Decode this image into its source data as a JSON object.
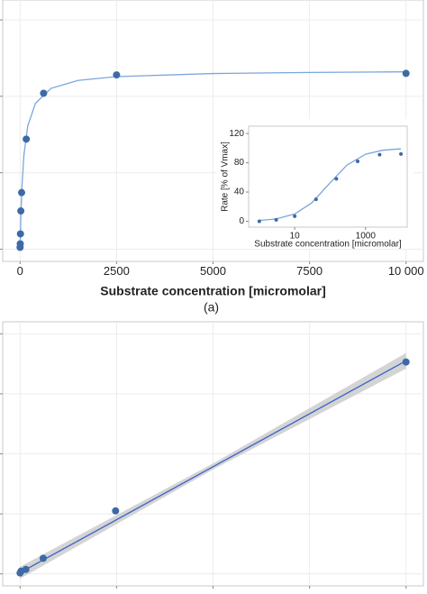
{
  "chart_data": [
    {
      "type": "scatter",
      "panel_label": "(a)",
      "xlabel": "Substrate concentration [micromolar]",
      "x": [
        0,
        5,
        10,
        20,
        40,
        160,
        610,
        2500,
        10000
      ],
      "values": [
        1.2,
        3.5,
        10,
        25,
        37,
        72,
        102,
        114,
        115
      ],
      "color": "#3d6aa6",
      "fit": {
        "x": [
          0,
          20,
          50,
          100,
          200,
          400,
          800,
          1500,
          2500,
          5000,
          7500,
          10000
        ],
        "values": [
          0,
          21.3,
          41.8,
          61.6,
          80.7,
          95.5,
          105.2,
          110.4,
          112.9,
          114.9,
          115.6,
          116.0
        ],
        "color": "#7aa6dc"
      },
      "xlim": [
        -450,
        10450
      ],
      "ylim": [
        -8,
        163
      ],
      "xticks": [
        0,
        2500,
        5000,
        7500,
        {
          "value": 10000,
          "label": "10 000"
        }
      ],
      "yticks": [
        0,
        50,
        100,
        150
      ],
      "grid": true,
      "xlog": false,
      "xtick_labels": true,
      "ytick_labels": false
    },
    {
      "type": "scatter",
      "xlabel": "Substrate concentration [micromolar]",
      "ylabel": "Rate [% of Vmax]",
      "x": [
        1,
        3,
        10,
        40,
        150,
        600,
        2500,
        10000
      ],
      "values": [
        0,
        2,
        7,
        30,
        58,
        82,
        91,
        92
      ],
      "color": "#3d6aa6",
      "fit": {
        "x": [
          1,
          3,
          10,
          30,
          100,
          300,
          1000,
          3000,
          10000
        ],
        "values": [
          1.1,
          3.2,
          10,
          25,
          52.6,
          76.9,
          91.7,
          97.1,
          99.1
        ],
        "color": "#7aa6dc"
      },
      "xlim": [
        0.5,
        15000
      ],
      "ylim": [
        -8,
        130
      ],
      "xticks": [
        10,
        1000
      ],
      "yticks": [
        0,
        40,
        80,
        120
      ],
      "grid": false,
      "xlog": true,
      "xtick_labels": true,
      "ytick_labels": true
    },
    {
      "type": "scatter",
      "x": [
        0,
        25,
        150,
        600,
        2475,
        10000
      ],
      "values": [
        0.015,
        0.045,
        0.075,
        0.26,
        1.05,
        3.53
      ],
      "color": "#3d6aa6",
      "fit": {
        "x": [
          0,
          10000
        ],
        "values": [
          0.02,
          3.55
        ],
        "color": "#3a62c8"
      },
      "band": {
        "x": [
          0,
          5000,
          10000
        ],
        "lower": [
          -0.08,
          1.74,
          3.42
        ],
        "upper": [
          0.12,
          1.84,
          3.68
        ],
        "color": "#c9c9c9"
      },
      "xlim": [
        -450,
        10450
      ],
      "ylim": [
        -0.2,
        4.2
      ],
      "xticks": [
        0,
        2500,
        5000,
        7500,
        10000
      ],
      "yticks": [
        0,
        1,
        2,
        3,
        4
      ],
      "grid": true,
      "xlog": false,
      "xtick_labels": false,
      "ytick_labels": false
    }
  ]
}
